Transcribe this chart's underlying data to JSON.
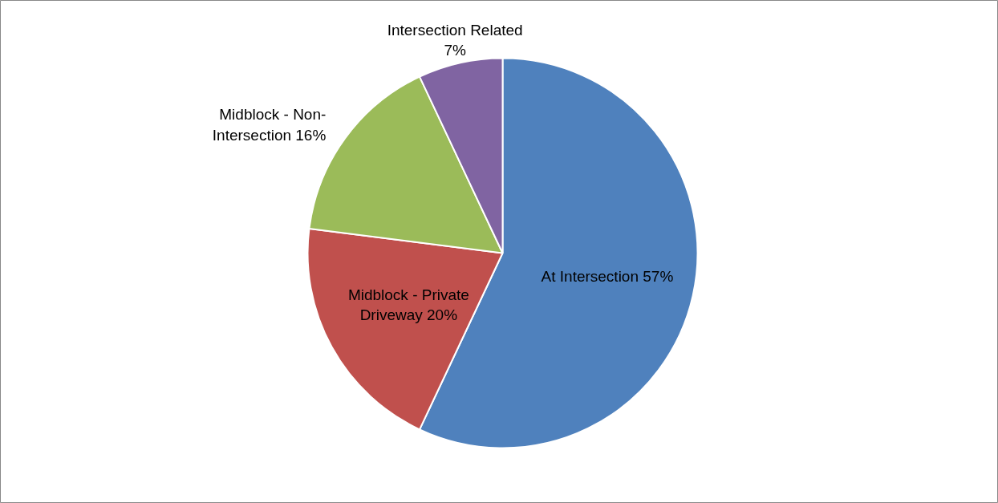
{
  "chart_data": {
    "type": "pie",
    "categories": [
      "At Intersection",
      "Midblock - Private Driveway",
      "Midblock - Non-Intersection",
      "Intersection Related"
    ],
    "values": [
      57,
      20,
      16,
      7
    ],
    "value_labels": [
      "57%",
      "20%",
      "16%",
      "7%"
    ],
    "colors": [
      "#4f81bd",
      "#c0504d",
      "#9bbb59",
      "#8064a2"
    ],
    "legend": false
  }
}
